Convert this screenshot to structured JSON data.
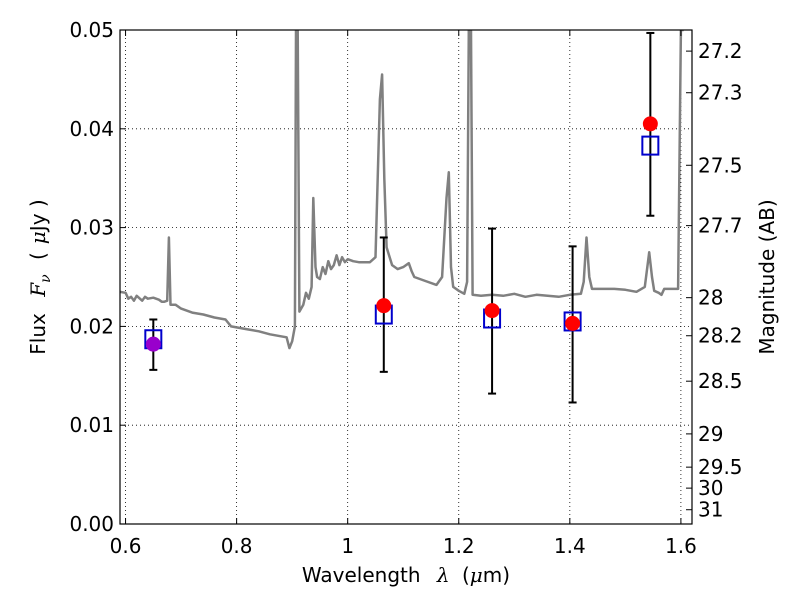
{
  "chart_data": {
    "type": "scatter",
    "xlabel": {
      "text": "Wavelength",
      "symbol": "λ",
      "unit_open": "(",
      "unit_mu": "μ",
      "unit_rest": "m)"
    },
    "ylabel": {
      "text": "Flux",
      "symbol": "F",
      "subscript": "ν",
      "unit_open": "(",
      "unit_mu": "μ",
      "unit_rest": "Jy )"
    },
    "y2label": "Magnitude (AB)",
    "xlim": [
      0.59,
      1.62
    ],
    "ylim": [
      0.0,
      0.05
    ],
    "xticks": [
      0.6,
      0.8,
      1.0,
      1.2,
      1.4,
      1.6
    ],
    "xtick_labels": [
      "0.6",
      "0.8",
      "1",
      "1.2",
      "1.4",
      "1.6"
    ],
    "yticks": [
      0.0,
      0.01,
      0.02,
      0.03,
      0.04,
      0.05
    ],
    "ytick_labels": [
      "0.00",
      "0.01",
      "0.02",
      "0.03",
      "0.04",
      "0.05"
    ],
    "y2ticks": [
      27.2,
      27.3,
      27.5,
      27.7,
      28,
      28.2,
      28.5,
      29,
      29.5,
      30,
      31
    ],
    "y2tick_labels": [
      "27.2",
      "27.3",
      "27.5",
      "27.7",
      "28",
      "28.2",
      "28.5",
      "29",
      "29.5",
      "30",
      "31"
    ],
    "grid": true,
    "colors": {
      "spectrum": "#808080",
      "observed": "#ff0000",
      "observed_first": "#9900cc",
      "model_box": "#0000cc",
      "errorbar": "#000000"
    },
    "spectrum": [
      [
        0.59,
        0.0235
      ],
      [
        0.6,
        0.0234
      ],
      [
        0.605,
        0.0228
      ],
      [
        0.61,
        0.023
      ],
      [
        0.615,
        0.0226
      ],
      [
        0.62,
        0.0231
      ],
      [
        0.63,
        0.0226
      ],
      [
        0.635,
        0.023
      ],
      [
        0.64,
        0.0228
      ],
      [
        0.65,
        0.0229
      ],
      [
        0.66,
        0.0227
      ],
      [
        0.665,
        0.0225
      ],
      [
        0.67,
        0.0225
      ],
      [
        0.675,
        0.0226
      ],
      [
        0.678,
        0.029
      ],
      [
        0.681,
        0.0222
      ],
      [
        0.69,
        0.0222
      ],
      [
        0.7,
        0.0218
      ],
      [
        0.72,
        0.0214
      ],
      [
        0.74,
        0.0212
      ],
      [
        0.76,
        0.0209
      ],
      [
        0.78,
        0.0207
      ],
      [
        0.79,
        0.02
      ],
      [
        0.8,
        0.0199
      ],
      [
        0.82,
        0.0197
      ],
      [
        0.84,
        0.0195
      ],
      [
        0.86,
        0.0192
      ],
      [
        0.88,
        0.019
      ],
      [
        0.89,
        0.0189
      ],
      [
        0.895,
        0.0178
      ],
      [
        0.9,
        0.0185
      ],
      [
        0.905,
        0.02
      ],
      [
        0.907,
        0.05
      ],
      [
        0.91,
        0.05
      ],
      [
        0.913,
        0.0215
      ],
      [
        0.92,
        0.0222
      ],
      [
        0.925,
        0.0234
      ],
      [
        0.93,
        0.0228
      ],
      [
        0.935,
        0.024
      ],
      [
        0.938,
        0.033
      ],
      [
        0.942,
        0.026
      ],
      [
        0.945,
        0.025
      ],
      [
        0.95,
        0.0248
      ],
      [
        0.955,
        0.026
      ],
      [
        0.96,
        0.0253
      ],
      [
        0.965,
        0.0266
      ],
      [
        0.97,
        0.0258
      ],
      [
        0.975,
        0.0262
      ],
      [
        0.98,
        0.0272
      ],
      [
        0.985,
        0.0262
      ],
      [
        0.99,
        0.027
      ],
      [
        0.995,
        0.0265
      ],
      [
        1.0,
        0.0268
      ],
      [
        1.01,
        0.0266
      ],
      [
        1.02,
        0.0265
      ],
      [
        1.04,
        0.0265
      ],
      [
        1.05,
        0.027
      ],
      [
        1.058,
        0.043
      ],
      [
        1.062,
        0.0455
      ],
      [
        1.066,
        0.035
      ],
      [
        1.07,
        0.028
      ],
      [
        1.08,
        0.0262
      ],
      [
        1.09,
        0.0258
      ],
      [
        1.1,
        0.026
      ],
      [
        1.11,
        0.0264
      ],
      [
        1.115,
        0.0256
      ],
      [
        1.12,
        0.025
      ],
      [
        1.14,
        0.0246
      ],
      [
        1.16,
        0.0242
      ],
      [
        1.17,
        0.025
      ],
      [
        1.178,
        0.033
      ],
      [
        1.182,
        0.0356
      ],
      [
        1.186,
        0.026
      ],
      [
        1.19,
        0.024
      ],
      [
        1.2,
        0.0236
      ],
      [
        1.21,
        0.0233
      ],
      [
        1.215,
        0.0245
      ],
      [
        1.218,
        0.05
      ],
      [
        1.222,
        0.05
      ],
      [
        1.225,
        0.0232
      ],
      [
        1.24,
        0.0231
      ],
      [
        1.26,
        0.0232
      ],
      [
        1.28,
        0.0231
      ],
      [
        1.3,
        0.0233
      ],
      [
        1.32,
        0.023
      ],
      [
        1.34,
        0.0232
      ],
      [
        1.36,
        0.0231
      ],
      [
        1.38,
        0.023
      ],
      [
        1.4,
        0.0232
      ],
      [
        1.42,
        0.0233
      ],
      [
        1.425,
        0.0245
      ],
      [
        1.43,
        0.029
      ],
      [
        1.435,
        0.025
      ],
      [
        1.44,
        0.0238
      ],
      [
        1.46,
        0.0238
      ],
      [
        1.48,
        0.0238
      ],
      [
        1.5,
        0.0237
      ],
      [
        1.52,
        0.0235
      ],
      [
        1.535,
        0.024
      ],
      [
        1.543,
        0.0275
      ],
      [
        1.548,
        0.025
      ],
      [
        1.552,
        0.0236
      ],
      [
        1.56,
        0.0234
      ],
      [
        1.565,
        0.0232
      ],
      [
        1.57,
        0.0238
      ],
      [
        1.58,
        0.0238
      ],
      [
        1.59,
        0.0238
      ],
      [
        1.595,
        0.0238
      ],
      [
        1.6,
        0.05
      ],
      [
        1.605,
        0.05
      ]
    ],
    "observed": [
      {
        "x": 0.65,
        "y": 0.0182,
        "yerr_low": 0.0156,
        "yerr_high": 0.0207,
        "model": 0.0187
      },
      {
        "x": 1.065,
        "y": 0.0221,
        "yerr_low": 0.0154,
        "yerr_high": 0.029,
        "model": 0.0212
      },
      {
        "x": 1.26,
        "y": 0.0216,
        "yerr_low": 0.0132,
        "yerr_high": 0.0299,
        "model": 0.0208
      },
      {
        "x": 1.405,
        "y": 0.0203,
        "yerr_low": 0.0123,
        "yerr_high": 0.0281,
        "model": 0.0205
      },
      {
        "x": 1.545,
        "y": 0.0405,
        "yerr_low": 0.0312,
        "yerr_high": 0.0497,
        "model": 0.0383
      }
    ]
  }
}
